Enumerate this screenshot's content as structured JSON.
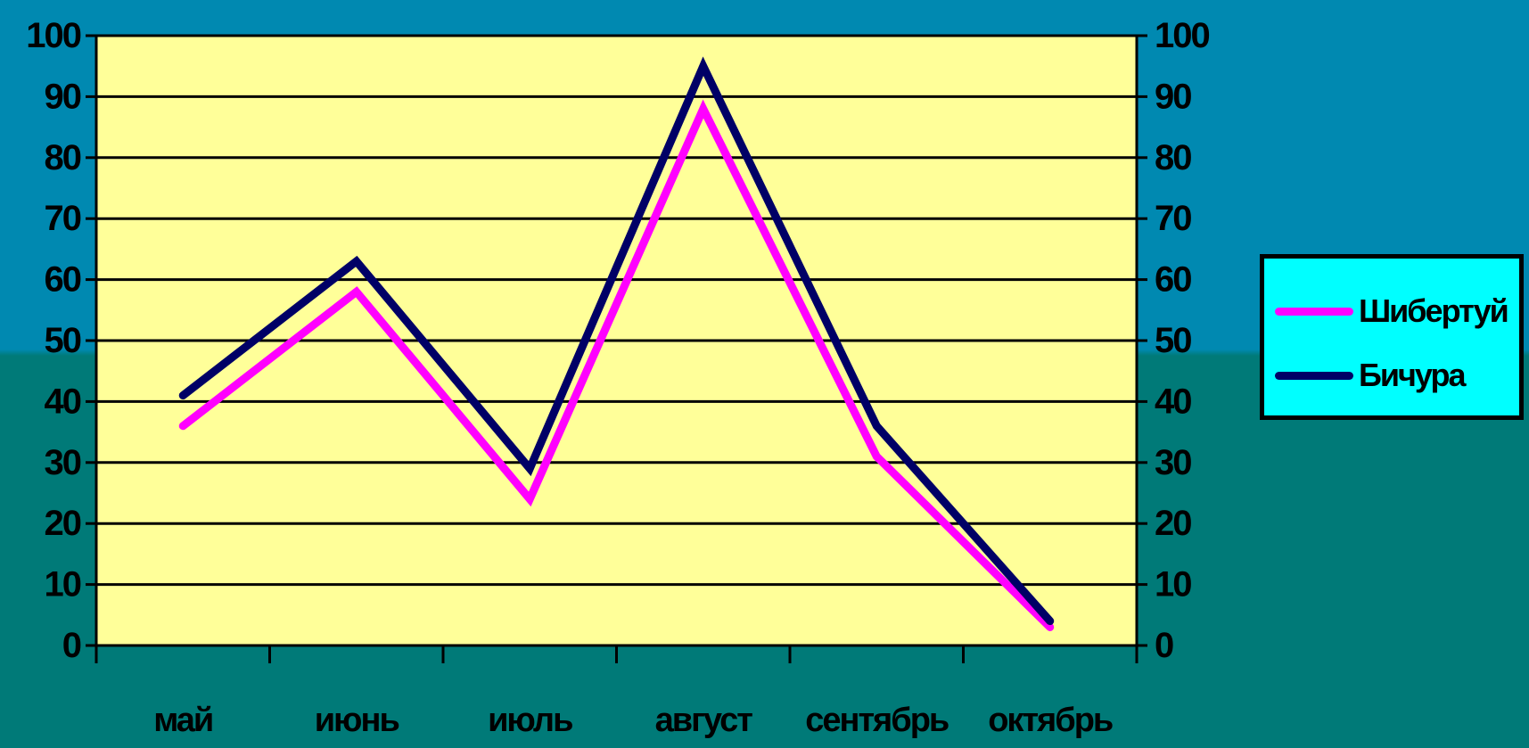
{
  "chart_data": {
    "type": "line",
    "categories": [
      "май",
      "июнь",
      "июль",
      "август",
      "сентябрь",
      "октябрь"
    ],
    "series": [
      {
        "name": "Шибертуй",
        "values": [
          36,
          58,
          24,
          88,
          31,
          3
        ],
        "color": "#ff00ff"
      },
      {
        "name": "Бичура",
        "values": [
          41,
          63,
          29,
          95,
          36,
          4
        ],
        "color": "#000066"
      }
    ],
    "ylim": [
      0,
      100
    ],
    "y_ticks": [
      "0",
      "10",
      "20",
      "30",
      "40",
      "50",
      "60",
      "70",
      "80",
      "90",
      "100"
    ],
    "y_ticks_right": [
      "0",
      "10",
      "20",
      "30",
      "40",
      "50",
      "60",
      "70",
      "80",
      "90",
      "100"
    ],
    "grid": true,
    "legend_position": "right",
    "colors": {
      "plot_background": "#ffff99",
      "legend_background": "#00ffff",
      "page_background_top": "#0089b1",
      "page_background_bottom": "#007a78"
    }
  }
}
